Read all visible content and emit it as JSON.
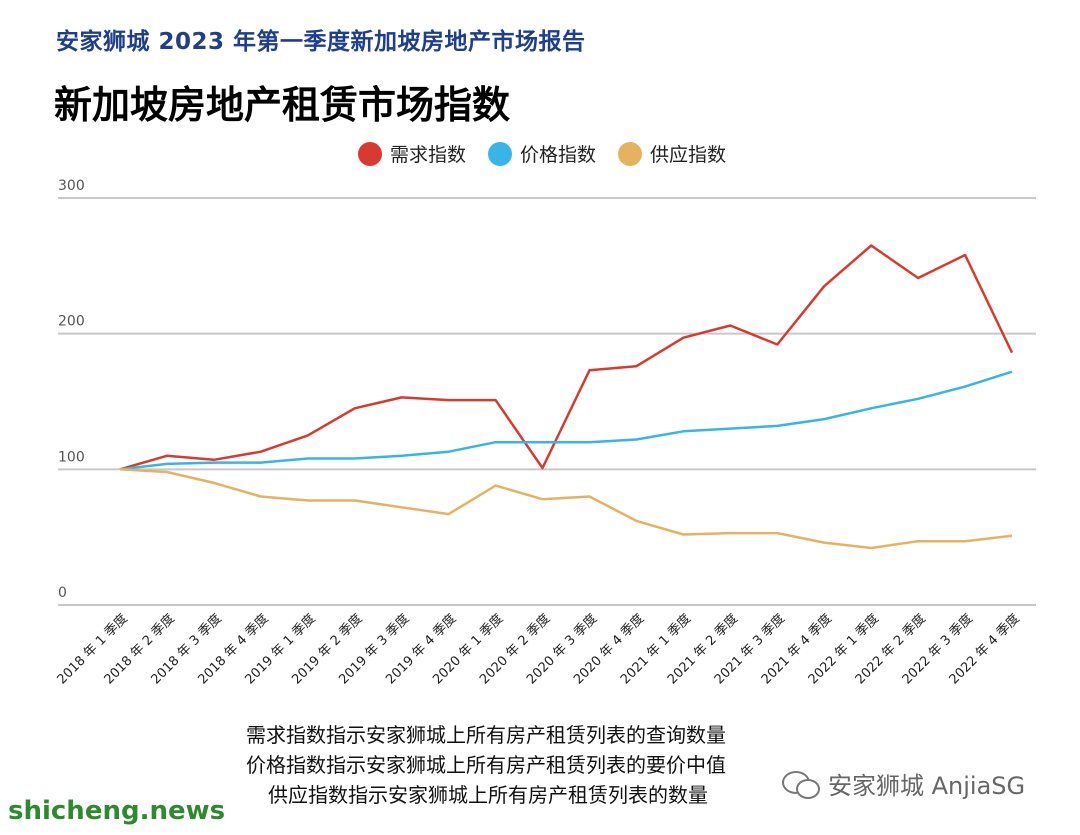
{
  "header": {
    "report_title": "安家狮城 2023 年第一季度新加坡房地产市场报告",
    "chart_title": "新加坡房地产租赁市场指数"
  },
  "colors": {
    "demand": "#d93a2f",
    "price": "#37b5e6",
    "supply": "#e4b35f",
    "grid": "#c8c8c8",
    "title_blue": "#1f3f8c"
  },
  "chart_data": {
    "type": "line",
    "title": "新加坡房地产租赁市场指数",
    "categories": [
      "2018 年 1 季度",
      "2018 年 2 季度",
      "2018 年 3 季度",
      "2018 年 4 季度",
      "2019 年 1 季度",
      "2019 年 2 季度",
      "2019 年 3 季度",
      "2019 年 4 季度",
      "2020 年 1 季度",
      "2020 年 2 季度",
      "2020 年 3 季度",
      "2020 年 4 季度",
      "2021 年 1 季度",
      "2021 年 2 季度",
      "2021 年 3 季度",
      "2021 年 4 季度",
      "2022 年 1 季度",
      "2022 年 2 季度",
      "2022 年 3 季度",
      "2022 年 4 季度"
    ],
    "series": [
      {
        "name": "需求指数",
        "color_key": "demand",
        "values": [
          100,
          110,
          107,
          113,
          125,
          145,
          153,
          151,
          151,
          101,
          173,
          176,
          197,
          206,
          192,
          235,
          265,
          241,
          258,
          186
        ]
      },
      {
        "name": "价格指数",
        "color_key": "price",
        "values": [
          100,
          104,
          105,
          105,
          108,
          108,
          110,
          113,
          120,
          120,
          120,
          122,
          128,
          130,
          132,
          137,
          145,
          152,
          161,
          172
        ]
      },
      {
        "name": "供应指数",
        "color_key": "supply",
        "values": [
          100,
          98,
          90,
          80,
          77,
          77,
          72,
          67,
          88,
          78,
          80,
          62,
          52,
          53,
          53,
          46,
          42,
          47,
          47,
          51
        ]
      }
    ],
    "y_ticks": [
      "0",
      "100",
      "200",
      "300"
    ],
    "ylim": [
      0,
      300
    ],
    "grid": true,
    "legend_position": "top-center"
  },
  "notes": [
    "需求指数指示安家狮城上所有房产租赁列表的查询数量",
    "价格指数指示安家狮城上所有房产租赁列表的要价中值",
    "供应指数指示安家狮城上所有房产租赁列表的数量"
  ],
  "watermarks": {
    "left": "shicheng.news",
    "right": "安家狮城 AnjiaSG",
    "right_icon": "wechat-icon"
  }
}
